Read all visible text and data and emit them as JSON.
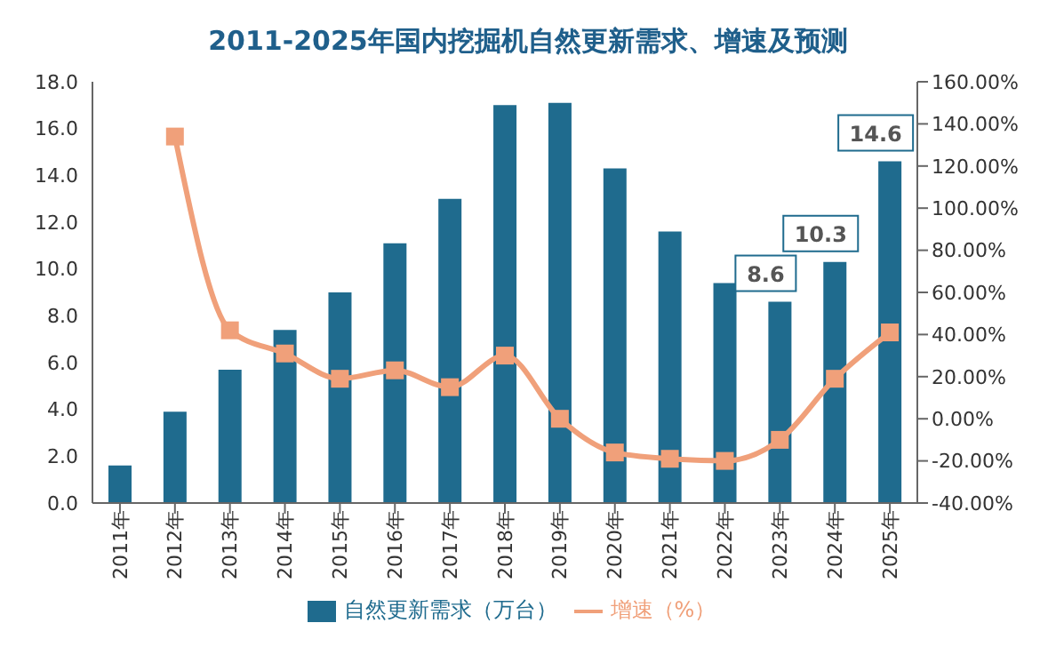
{
  "chart_data": {
    "type": "bar",
    "title": "2011-2025年国内挖掘机自然更新需求、增速及预测",
    "categories": [
      "2011年",
      "2012年",
      "2013年",
      "2014年",
      "2015年",
      "2016年",
      "2017年",
      "2018年",
      "2019年",
      "2020年",
      "2021年",
      "2022年",
      "2023年",
      "2024年",
      "2025年"
    ],
    "series": [
      {
        "name": "自然更新需求（万台）",
        "color": "#1f6b8e",
        "values": [
          1.6,
          3.9,
          5.7,
          7.4,
          9.0,
          11.1,
          13.0,
          17.0,
          17.1,
          14.3,
          11.6,
          9.4,
          8.6,
          10.3,
          14.6
        ],
        "value_labels": [
          null,
          null,
          null,
          null,
          null,
          null,
          null,
          null,
          null,
          null,
          null,
          null,
          "8.6",
          "10.3",
          "14.6"
        ]
      },
      {
        "name": "增速（%）",
        "type": "line",
        "axis": "y2",
        "color": "#f0a07a",
        "values": [
          null,
          134,
          42,
          31,
          19,
          23,
          15,
          30,
          0,
          -16,
          -19,
          -20,
          -10,
          19,
          41
        ]
      }
    ],
    "ylim": [
      0,
      18
    ],
    "yticks": [
      {
        "value": 0,
        "label": "0.0"
      },
      {
        "value": 2,
        "label": "2.0"
      },
      {
        "value": 4,
        "label": "4.0"
      },
      {
        "value": 6,
        "label": "6.0"
      },
      {
        "value": 8,
        "label": "8.0"
      },
      {
        "value": 10,
        "label": "10.0"
      },
      {
        "value": 12,
        "label": "12.0"
      },
      {
        "value": 14,
        "label": "14.0"
      },
      {
        "value": 16,
        "label": "16.0"
      },
      {
        "value": 18,
        "label": "18.0"
      }
    ],
    "y2lim": [
      -40,
      160
    ],
    "y2ticks": [
      {
        "value": -40,
        "label": "-40.00%"
      },
      {
        "value": -20,
        "label": "-20.00%"
      },
      {
        "value": 0,
        "label": "0.00%"
      },
      {
        "value": 20,
        "label": "20.00%"
      },
      {
        "value": 40,
        "label": "40.00%"
      },
      {
        "value": 60,
        "label": "60.00%"
      },
      {
        "value": 80,
        "label": "80.00%"
      },
      {
        "value": 100,
        "label": "100.00%"
      },
      {
        "value": 120,
        "label": "120.00%"
      },
      {
        "value": 140,
        "label": "140.00%"
      },
      {
        "value": 160,
        "label": "160.00%"
      }
    ],
    "legend": "bottom",
    "marker": "square",
    "line_style": "solid",
    "grid": false
  }
}
